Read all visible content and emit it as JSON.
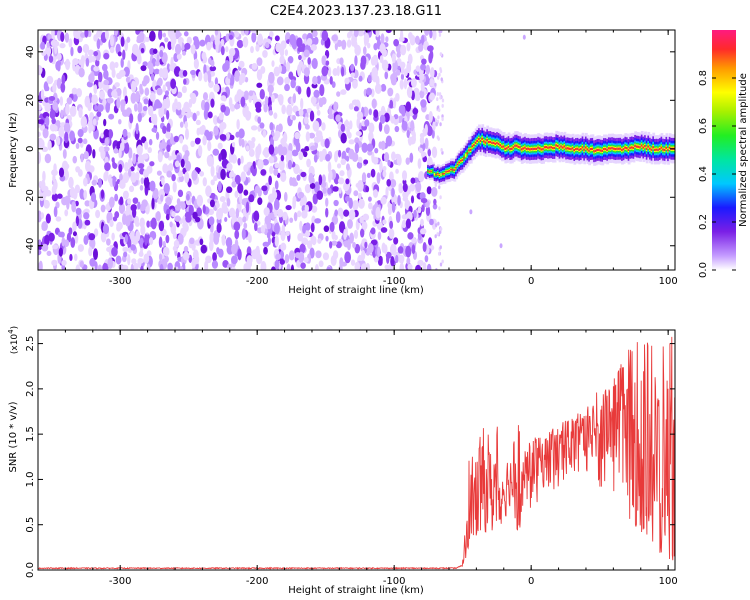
{
  "title": "C2E4.2023.137.23.18.G11",
  "chart_data": [
    {
      "type": "heatmap",
      "title": "C2E4.2023.137.23.18.G11",
      "xlabel": "Height of straight line (km)",
      "ylabel": "Frequency (Hz)",
      "xlim": [
        -360,
        105
      ],
      "ylim": [
        -50,
        49
      ],
      "x_ticks": [
        -300,
        -200,
        -100,
        0,
        100
      ],
      "y_ticks": [
        -40,
        -20,
        0,
        20,
        40
      ],
      "noise_region_x": [
        -360,
        -70
      ],
      "signal_track": {
        "x": [
          -75,
          -65,
          -55,
          -48,
          -42,
          -38,
          -32,
          -25,
          -18,
          -10,
          -5,
          0,
          10,
          20,
          30,
          40,
          50,
          60,
          70,
          80,
          90,
          100,
          105
        ],
        "y": [
          -9,
          -11,
          -8,
          -3,
          1,
          4,
          3,
          2,
          0,
          1,
          0,
          0,
          0,
          1,
          0,
          0,
          -1,
          0,
          0,
          1,
          0,
          0,
          0
        ]
      },
      "colorbar": {
        "label": "Normalized spectral amplitude",
        "range": [
          0.0,
          1.0
        ],
        "ticks": [
          0.0,
          0.2,
          0.4,
          0.6,
          0.8
        ]
      },
      "grid": false
    },
    {
      "type": "line",
      "xlabel": "Height of straight line (km)",
      "ylabel": "SNR (10 * v/v)",
      "exponent_label": "(x10",
      "exponent_power": "4",
      "exponent_close": ")",
      "xlim": [
        -360,
        105
      ],
      "ylim": [
        0.0,
        2.65
      ],
      "x_ticks": [
        -300,
        -200,
        -100,
        0,
        100
      ],
      "y_ticks": [
        0.0,
        0.5,
        1.0,
        1.5,
        2.0,
        2.5
      ],
      "series": [
        {
          "color": "#e83a3a",
          "x": [
            -360,
            -300,
            -200,
            -100,
            -55,
            -50,
            -48,
            -45,
            -40,
            -35,
            -30,
            -25,
            -20,
            -15,
            -10,
            -5,
            0,
            10,
            20,
            30,
            40,
            50,
            60,
            70,
            80,
            90,
            100,
            105
          ],
          "values": [
            0.02,
            0.02,
            0.02,
            0.02,
            0.02,
            0.05,
            0.4,
            0.7,
            0.8,
            0.9,
            0.9,
            1.0,
            0.9,
            1.0,
            0.9,
            1.0,
            1.1,
            1.2,
            1.3,
            1.4,
            1.5,
            1.6,
            1.6,
            1.5,
            1.4,
            1.3,
            1.2,
            1.1
          ],
          "upper": [
            0.03,
            0.03,
            0.03,
            0.03,
            0.03,
            0.1,
            0.9,
            1.25,
            1.3,
            1.65,
            1.5,
            1.6,
            1.35,
            1.3,
            1.65,
            1.3,
            1.45,
            1.5,
            1.65,
            1.7,
            1.75,
            1.95,
            2.1,
            2.45,
            2.55,
            2.5,
            2.6,
            2.65
          ],
          "lower": [
            0.0,
            0.0,
            0.0,
            0.0,
            0.0,
            0.0,
            0.1,
            0.3,
            0.3,
            0.4,
            0.4,
            0.5,
            0.4,
            0.6,
            0.4,
            0.5,
            0.6,
            0.8,
            0.9,
            1.0,
            1.0,
            0.9,
            0.8,
            0.6,
            0.4,
            0.2,
            0.1,
            0.05
          ]
        }
      ],
      "grid": false
    }
  ]
}
